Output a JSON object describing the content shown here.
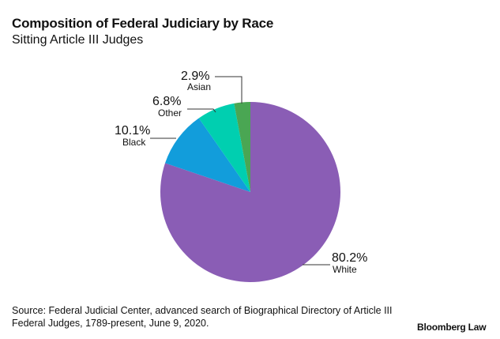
{
  "title": "Composition of Federal Judiciary by Race",
  "subtitle": "Sitting Article III Judges",
  "source": "Source: Federal Judicial Center, advanced search of Biographical Directory of Article III Federal Judges, 1789-present, June 9, 2020.",
  "brand": "Bloomberg Law",
  "chart_data": {
    "type": "pie",
    "start": "12 o'clock, clockwise",
    "slices": [
      {
        "label": "White",
        "value": 80.2,
        "display": "80.2%",
        "color": "#8a5db5"
      },
      {
        "label": "Black",
        "value": 10.1,
        "display": "10.1%",
        "color": "#129ddb"
      },
      {
        "label": "Other",
        "value": 6.8,
        "display": "6.8%",
        "color": "#00cfb0"
      },
      {
        "label": "Asian",
        "value": 2.9,
        "display": "2.9%",
        "color": "#4aa653"
      }
    ]
  }
}
